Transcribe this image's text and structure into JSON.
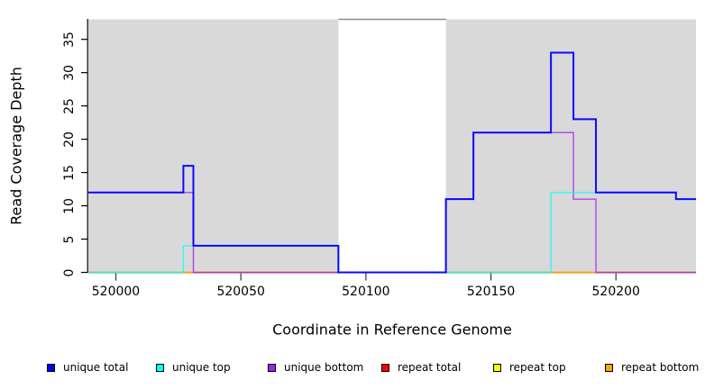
{
  "chart_data": {
    "type": "line",
    "subtype": "step-after-coverage-plot",
    "title": "",
    "xlabel": "Coordinate in Reference Genome",
    "ylabel": "Read Coverage Depth",
    "xlim": [
      519989,
      520232
    ],
    "ylim": [
      0,
      38
    ],
    "x_ticks": [
      520000,
      520050,
      520100,
      520150,
      520200
    ],
    "y_ticks": [
      0,
      5,
      10,
      15,
      20,
      25,
      30,
      35
    ],
    "grid": false,
    "legend_position": "bottom-horizontal",
    "shaded_regions": [
      {
        "from": 519989,
        "to": 520089,
        "color": "#d9d9d9"
      },
      {
        "from": 520132,
        "to": 520232,
        "color": "#d9d9d9"
      }
    ],
    "gap_region": {
      "from": 520089,
      "to": 520132,
      "color": "#ffffff"
    },
    "series": [
      {
        "name": "repeat total",
        "color": "#ff0000",
        "width": 1.2,
        "opacity": 0.9,
        "steps": [
          {
            "x": 519989,
            "y": 0
          }
        ]
      },
      {
        "name": "repeat top",
        "color": "#ffff00",
        "width": 1.2,
        "opacity": 1,
        "steps": [
          {
            "x": 519989,
            "y": 0
          }
        ]
      },
      {
        "name": "repeat bottom",
        "color": "#ffa500",
        "width": 1.6,
        "opacity": 1,
        "steps": [
          {
            "x": 519989,
            "y": 0
          }
        ]
      },
      {
        "name": "unique bottom",
        "color": "#a020f0",
        "width": 1.4,
        "opacity": 0.8,
        "steps": [
          {
            "x": 519989,
            "y": 12
          },
          {
            "x": 520031,
            "y": 0
          },
          {
            "x": 520132,
            "y": 11
          },
          {
            "x": 520143,
            "y": 21
          },
          {
            "x": 520183,
            "y": 11
          },
          {
            "x": 520192,
            "y": 0
          }
        ]
      },
      {
        "name": "unique top",
        "color": "#00ffff",
        "width": 1.4,
        "opacity": 0.8,
        "steps": [
          {
            "x": 519989,
            "y": 0
          },
          {
            "x": 520027,
            "y": 4
          },
          {
            "x": 520089,
            "y": 0
          },
          {
            "x": 520174,
            "y": 12
          },
          {
            "x": 520224,
            "y": 11
          }
        ]
      },
      {
        "name": "unique total",
        "color": "#0000ff",
        "width": 2,
        "opacity": 0.95,
        "steps": [
          {
            "x": 519989,
            "y": 12
          },
          {
            "x": 520027,
            "y": 16
          },
          {
            "x": 520031,
            "y": 4
          },
          {
            "x": 520089,
            "y": 0
          },
          {
            "x": 520132,
            "y": 11
          },
          {
            "x": 520143,
            "y": 21
          },
          {
            "x": 520174,
            "y": 33
          },
          {
            "x": 520183,
            "y": 23
          },
          {
            "x": 520192,
            "y": 12
          },
          {
            "x": 520224,
            "y": 11
          }
        ]
      }
    ],
    "legend": [
      {
        "label": "unique total",
        "color": "#0000ff"
      },
      {
        "label": "unique top",
        "color": "#00ffff"
      },
      {
        "label": "unique bottom",
        "color": "#a020f0"
      },
      {
        "label": "repeat total",
        "color": "#ff0000"
      },
      {
        "label": "repeat top",
        "color": "#ffff00"
      },
      {
        "label": "repeat bottom",
        "color": "#ffa500"
      }
    ]
  }
}
